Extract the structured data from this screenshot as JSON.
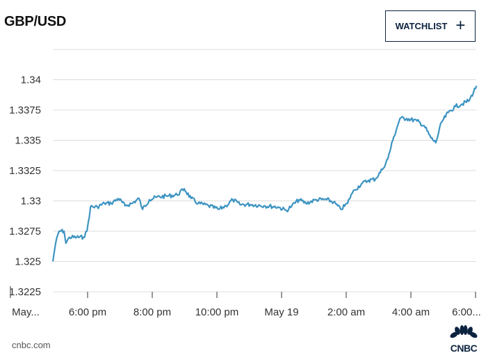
{
  "header": {
    "title": "GBP/USD",
    "watchlist_label": "WATCHLIST",
    "watchlist_icon": "plus-icon"
  },
  "footer": {
    "source": "cnbc.com",
    "logo": "CNBC"
  },
  "colors": {
    "line": "#3d94c2",
    "grid": "#dcdcdc",
    "brand": "#0c2340"
  },
  "chart_data": {
    "type": "line",
    "title": "GBP/USD",
    "xlabel": "",
    "ylabel": "",
    "x_unit": "hours after 4:00 pm May 18",
    "ylim": [
      1.3225,
      1.3425
    ],
    "xlim": [
      0.925,
      14.05
    ],
    "yticks": [
      {
        "v": 1.3225,
        "label": "1.3225"
      },
      {
        "v": 1.325,
        "label": "1.325"
      },
      {
        "v": 1.3275,
        "label": "1.3275"
      },
      {
        "v": 1.33,
        "label": "1.33"
      },
      {
        "v": 1.3325,
        "label": "1.3325"
      },
      {
        "v": 1.335,
        "label": "1.335"
      },
      {
        "v": 1.3375,
        "label": "1.3375"
      },
      {
        "v": 1.34,
        "label": "1.34"
      }
    ],
    "xticks": [
      {
        "t": 2,
        "label": "6:00 pm"
      },
      {
        "t": 4,
        "label": "8:00 pm"
      },
      {
        "t": 6,
        "label": "10:00 pm"
      },
      {
        "t": 8,
        "label": "May 19"
      },
      {
        "t": 10,
        "label": "2:00 am"
      },
      {
        "t": 12,
        "label": "4:00 am"
      },
      {
        "t": 14,
        "label": "6:00..."
      }
    ],
    "start_label": "May...",
    "grid": true,
    "series": [
      {
        "name": "GBP/USD",
        "x": [
          0.925,
          1.01,
          1.12,
          1.27,
          1.33,
          1.44,
          1.66,
          1.87,
          1.98,
          2.09,
          2.3,
          2.52,
          2.73,
          2.95,
          3.16,
          3.38,
          3.59,
          3.7,
          3.91,
          4.13,
          4.45,
          4.77,
          4.99,
          5.2,
          5.42,
          5.74,
          6.06,
          6.28,
          6.49,
          6.71,
          7.03,
          7.46,
          7.89,
          8.15,
          8.32,
          8.54,
          8.75,
          9.08,
          9.4,
          9.61,
          9.83,
          10.04,
          10.15,
          10.26,
          10.47,
          10.69,
          10.9,
          11.12,
          11.29,
          11.44,
          11.66,
          11.87,
          12.19,
          12.41,
          12.62,
          12.77,
          12.95,
          13.16,
          13.38,
          13.59,
          13.81,
          14.03
        ],
        "y": [
          1.325,
          1.3265,
          1.3275,
          1.3275,
          1.3265,
          1.327,
          1.327,
          1.327,
          1.3275,
          1.3295,
          1.3295,
          1.3298,
          1.3298,
          1.3302,
          1.3296,
          1.3298,
          1.3302,
          1.3293,
          1.3301,
          1.3303,
          1.3304,
          1.3305,
          1.331,
          1.3302,
          1.3298,
          1.3296,
          1.3293,
          1.3296,
          1.3301,
          1.3297,
          1.3297,
          1.3296,
          1.3295,
          1.3292,
          1.3296,
          1.3301,
          1.3298,
          1.3301,
          1.3301,
          1.3299,
          1.3293,
          1.3298,
          1.3305,
          1.3309,
          1.3314,
          1.3317,
          1.3318,
          1.3326,
          1.3335,
          1.335,
          1.3368,
          1.3368,
          1.3366,
          1.3362,
          1.3352,
          1.3348,
          1.3365,
          1.3373,
          1.3378,
          1.338,
          1.3383,
          1.3395
        ]
      }
    ]
  }
}
